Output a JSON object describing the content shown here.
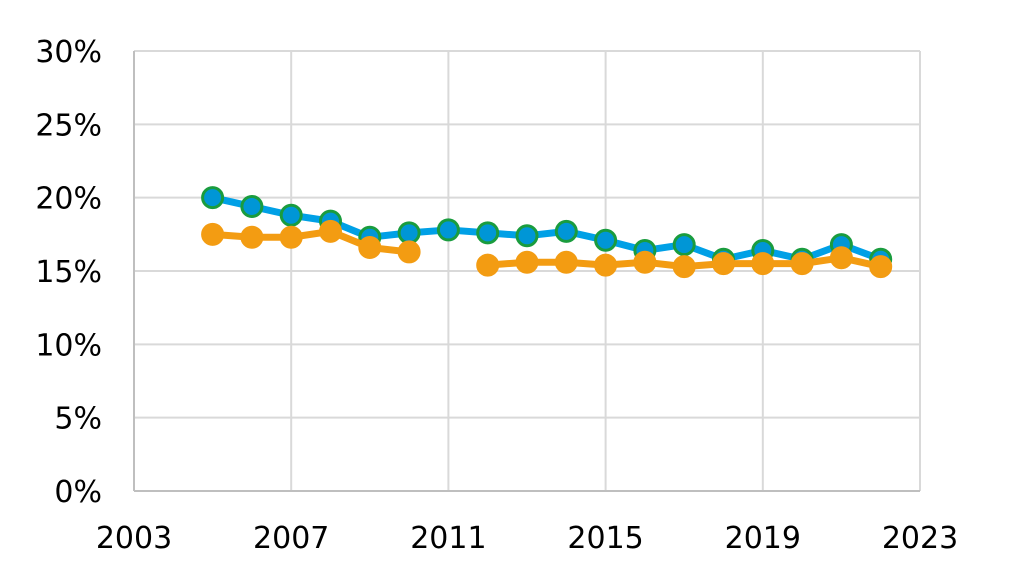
{
  "chart_data": {
    "type": "line",
    "title": "",
    "xlabel": "",
    "ylabel": "",
    "xlim": [
      2003,
      2023
    ],
    "ylim": [
      0,
      30
    ],
    "x_ticks": [
      "2003",
      "2007",
      "2011",
      "2015",
      "2019",
      "2023"
    ],
    "y_ticks": [
      "0%",
      "5%",
      "10%",
      "15%",
      "20%",
      "25%",
      "30%"
    ],
    "grid": true,
    "legend": "none",
    "series": [
      {
        "line_color": "#00a0e6",
        "marker_fill": "#0096d6",
        "marker_edge": "#1a9c3e",
        "x": [
          2005,
          2006,
          2007,
          2008,
          2009,
          2010,
          2011,
          2012,
          2013,
          2014,
          2015,
          2016,
          2017,
          2018,
          2019,
          2020,
          2021,
          2022
        ],
        "y": [
          20.0,
          19.4,
          18.8,
          18.4,
          17.3,
          17.6,
          17.8,
          17.6,
          17.4,
          17.7,
          17.1,
          16.4,
          16.8,
          15.8,
          16.4,
          15.8,
          16.8,
          15.8
        ]
      },
      {
        "line_color": "#f39c12",
        "marker_fill": "#f39c12",
        "marker_edge": "#f39c12",
        "x": [
          2005,
          2006,
          2007,
          2008,
          2009,
          2010,
          2011,
          2012,
          2013,
          2014,
          2015,
          2016,
          2017,
          2018,
          2019,
          2020,
          2021,
          2022
        ],
        "y": [
          17.5,
          17.3,
          17.3,
          17.7,
          16.6,
          16.3,
          null,
          15.4,
          15.6,
          15.6,
          15.4,
          15.6,
          15.3,
          15.5,
          15.5,
          15.5,
          15.9,
          15.3
        ]
      }
    ]
  }
}
